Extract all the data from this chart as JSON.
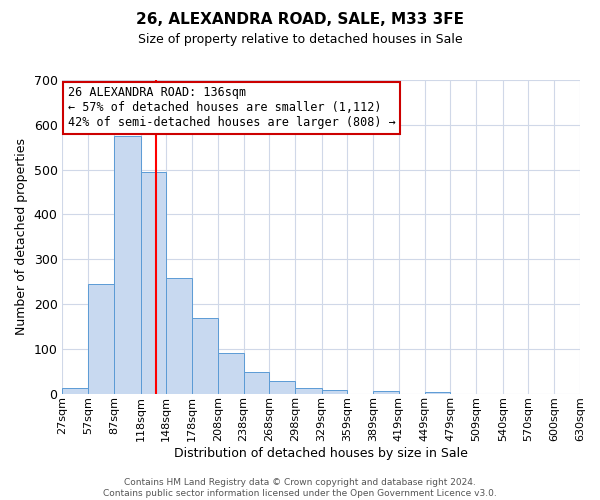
{
  "title": "26, ALEXANDRA ROAD, SALE, M33 3FE",
  "subtitle": "Size of property relative to detached houses in Sale",
  "xlabel": "Distribution of detached houses by size in Sale",
  "ylabel": "Number of detached properties",
  "bar_left_edges": [
    27,
    57,
    87,
    118,
    148,
    178,
    208,
    238,
    268,
    298,
    329,
    359,
    389,
    419,
    449,
    479,
    509,
    540,
    570,
    600
  ],
  "bar_heights": [
    12,
    245,
    575,
    495,
    258,
    168,
    91,
    47,
    27,
    13,
    8,
    0,
    5,
    0,
    4,
    0,
    0,
    0,
    0,
    0
  ],
  "bin_labels": [
    "27sqm",
    "57sqm",
    "87sqm",
    "118sqm",
    "148sqm",
    "178sqm",
    "208sqm",
    "238sqm",
    "268sqm",
    "298sqm",
    "329sqm",
    "359sqm",
    "389sqm",
    "419sqm",
    "449sqm",
    "479sqm",
    "509sqm",
    "540sqm",
    "570sqm",
    "600sqm",
    "630sqm"
  ],
  "bar_color": "#c8d9f0",
  "bar_edge_color": "#5b9bd5",
  "property_line_x": 136,
  "ylim": [
    0,
    700
  ],
  "yticks": [
    0,
    100,
    200,
    300,
    400,
    500,
    600,
    700
  ],
  "xlim_min": 27,
  "xlim_max": 630,
  "annotation_title": "26 ALEXANDRA ROAD: 136sqm",
  "annotation_line1": "← 57% of detached houses are smaller (1,112)",
  "annotation_line2": "42% of semi-detached houses are larger (808) →",
  "annotation_box_color": "#ffffff",
  "annotation_box_edge_color": "#cc0000",
  "footer_line1": "Contains HM Land Registry data © Crown copyright and database right 2024.",
  "footer_line2": "Contains public sector information licensed under the Open Government Licence v3.0.",
  "background_color": "#ffffff",
  "grid_color": "#d0d8e8",
  "title_fontsize": 11,
  "subtitle_fontsize": 9,
  "ylabel_fontsize": 9,
  "xlabel_fontsize": 9,
  "tick_fontsize": 8,
  "ytick_fontsize": 9,
  "footer_fontsize": 6.5,
  "annotation_fontsize": 8.5
}
